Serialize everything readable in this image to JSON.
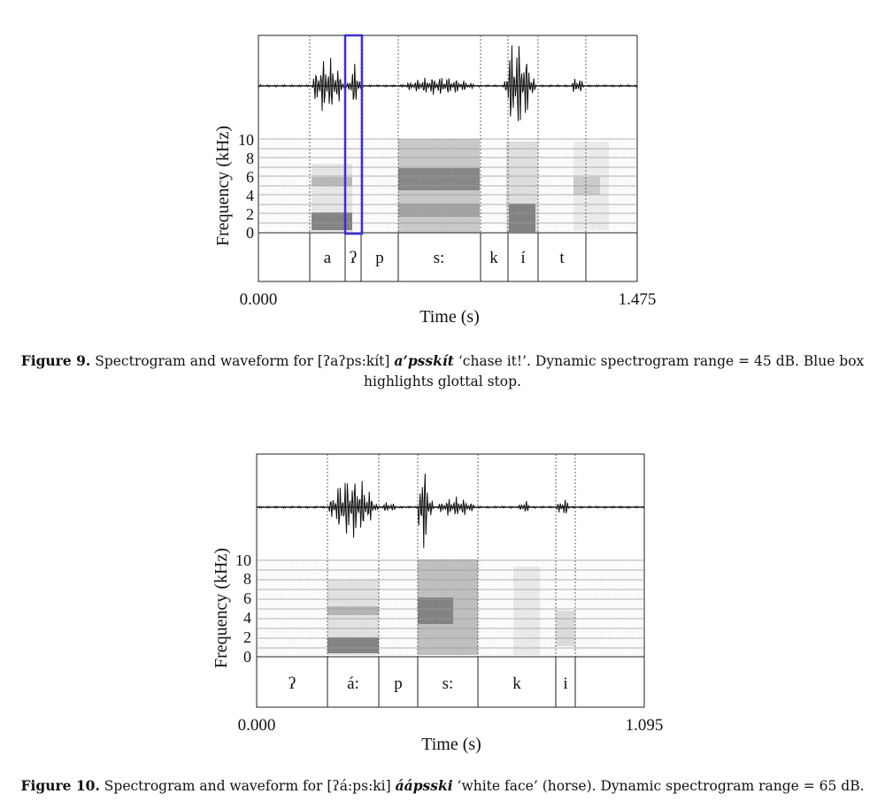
{
  "figures": [
    {
      "id": "figure-9",
      "caption": {
        "label": "Figure 9.",
        "before": " Spectrogram and waveform for [ʔaʔps:kít] ",
        "orth": "a’psskít",
        "after": " ‘chase it!’. Dynamic spectrogram range = 45 dB. Blue box highlights glottal stop."
      },
      "y_axis": {
        "label": "Frequency (kHz)",
        "ticks": [
          "0",
          "2",
          "4",
          "6",
          "8",
          "10"
        ]
      },
      "x_axis": {
        "label": "Time (s)",
        "start": "0.000",
        "end": "1.475"
      },
      "segments": [
        "",
        "a",
        "ʔ",
        "p",
        "s:",
        "k",
        "í",
        "t",
        ""
      ],
      "highlight": {
        "segment": "ʔ",
        "color": "#3b2fd6"
      }
    },
    {
      "id": "figure-10",
      "caption": {
        "label": "Figure 10.",
        "before": " Spectrogram and waveform for [ʔá:ps:ki] ",
        "orth": "áápsski",
        "after": " ‘white face’ (horse). Dynamic spectrogram range = 65 dB."
      },
      "y_axis": {
        "label": "Frequency (kHz)",
        "ticks": [
          "0",
          "2",
          "4",
          "6",
          "8",
          "10"
        ]
      },
      "x_axis": {
        "label": "Time (s)",
        "start": "0.000",
        "end": "1.095"
      },
      "segments": [
        "ʔ",
        "á:",
        "p",
        "s:",
        "k",
        "i",
        ""
      ]
    }
  ]
}
